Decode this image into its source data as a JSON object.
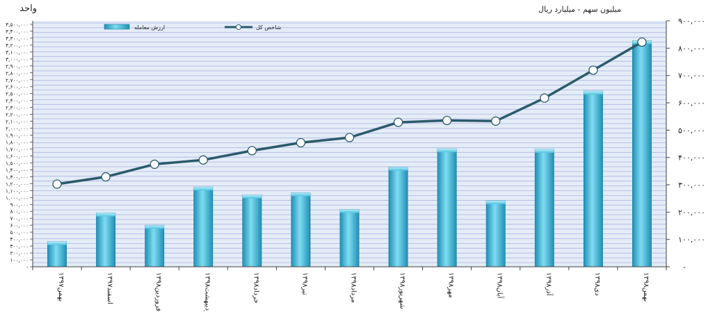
{
  "chart_data": {
    "type": "bar",
    "left_axis_title": "واحد",
    "right_axis_title": "میلیون سهم - میلیارد ریال",
    "categories": [
      "۱۳۹۷بهمن",
      "۱۳۹۷اسفند",
      "۱۳۹۸فروردین",
      "۱۳۹۸اردیبهشت",
      "۱۳۹۸خرداد",
      "۱۳۹۸تیر",
      "۱۳۹۸مرداد",
      "۱۳۹۸شهریور",
      "۱۳۹۸مهر",
      "۱۳۹۸آبان",
      "۱۳۹۸آذر",
      "۱۳۹۸دی",
      "۱۳۹۸بهمن"
    ],
    "series": [
      {
        "name": "ارزش معامله",
        "kind": "bar",
        "axis": "right",
        "color": "#3db5d6",
        "values": [
          92000,
          197000,
          152000,
          292000,
          263000,
          271000,
          210000,
          365000,
          432000,
          242000,
          430000,
          643000,
          828000
        ]
      },
      {
        "name": "شاخص کل",
        "kind": "line",
        "axis": "left",
        "color": "#2b5a6b",
        "values": [
          1193000,
          1298000,
          1480000,
          1541000,
          1676000,
          1791000,
          1865000,
          2085000,
          2112000,
          2103000,
          2435000,
          2838000,
          3243000
        ]
      }
    ],
    "right_axis": {
      "ylim": [
        0,
        900000
      ],
      "ticks": [
        0,
        100000,
        200000,
        300000,
        400000,
        500000,
        600000,
        700000,
        800000,
        900000
      ],
      "tick_labels": [
        "-",
        "۱۰۰,۰۰۰",
        "۲۰۰,۰۰۰",
        "۳۰۰,۰۰۰",
        "۴۰۰,۰۰۰",
        "۵۰۰,۰۰۰",
        "۶۰۰,۰۰۰",
        "۷۰۰,۰۰۰",
        "۸۰۰,۰۰۰",
        "۹۰۰,۰۰۰"
      ]
    },
    "left_axis": {
      "ylim": [
        0,
        3550000
      ],
      "ticks": [
        0,
        100000,
        200000,
        300000,
        400000,
        500000,
        600000,
        700000,
        800000,
        900000,
        1000000,
        1100000,
        1200000,
        1300000,
        1400000,
        1500000,
        1600000,
        1700000,
        1800000,
        1900000,
        2000000,
        2100000,
        2200000,
        2300000,
        2400000,
        2500000,
        2600000,
        2700000,
        2800000,
        2900000,
        3000000,
        3100000,
        3200000,
        3300000,
        3400000,
        3500000
      ],
      "tick_labels": [
        "-",
        "۱۰۰,۰۰۰",
        "۲۰۰,۰۰۰",
        "۳۰۰,۰۰۰",
        "۴۰۰,۰۰۰",
        "۵۰۰,۰۰۰",
        "۶۰۰,۰۰۰",
        "۷۰۰,۰۰۰",
        "۸۰۰,۰۰۰",
        "۹۰۰,۰۰۰",
        "۱,۰۰۰,۰۰۰",
        "۱,۱۰۰,۰۰۰",
        "۱,۲۰۰,۰۰۰",
        "۱,۳۰۰,۰۰۰",
        "۱,۴۰۰,۰۰۰",
        "۱,۵۰۰,۰۰۰",
        "۱,۶۰۰,۰۰۰",
        "۱,۷۰۰,۰۰۰",
        "۱,۸۰۰,۰۰۰",
        "۱,۹۰۰,۰۰۰",
        "۲,۰۰۰,۰۰۰",
        "۲,۱۰۰,۰۰۰",
        "۲,۲۰۰,۰۰۰",
        "۲,۳۰۰,۰۰۰",
        "۲,۴۰۰,۰۰۰",
        "۲,۵۰۰,۰۰۰",
        "۲,۶۰۰,۰۰۰",
        "۲,۷۰۰,۰۰۰",
        "۲,۸۰۰,۰۰۰",
        "۲,۹۰۰,۰۰۰",
        "۳,۰۰۰,۰۰۰",
        "۳,۱۰۰,۰۰۰",
        "۳,۲۰۰,۰۰۰",
        "۳,۳۰۰,۰۰۰",
        "۳,۴۰۰,۰۰۰",
        "۳,۵۰۰,۰۰۰"
      ]
    },
    "grid": true,
    "legend_position": "top",
    "colors": {
      "plot_background": "#e4ecf6",
      "gridline": "#aab4e6",
      "axis": "#404040"
    }
  }
}
